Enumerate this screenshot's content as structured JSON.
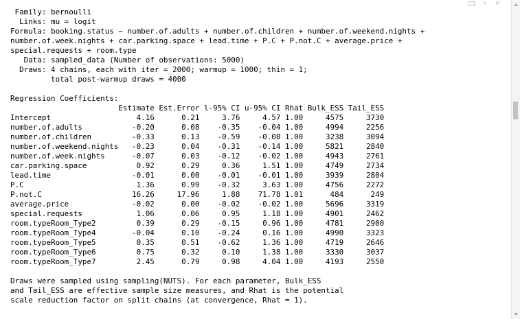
{
  "window_controls": {
    "minimize_icon": "minimize-icon",
    "maximize_icon": "maximize-icon",
    "close_icon": "close-icon",
    "collapse_glyph": "»",
    "close_glyph": "×"
  },
  "console_output": {
    "lines": [
      " Family: bernoulli",
      "  Links: mu = logit",
      "Formula: booking.status ~ number.of.adults + number.of.children + number.of.weekend.nights +",
      "number.of.week.nights + car.parking.space + lead.time + P.C + P.not.C + average.price +",
      "special.requests + room.type",
      "   Data: sampled_data (Number of observations: 5000)",
      "  Draws: 4 chains, each with iter = 2000; warmup = 1000; thin = 1;",
      "         total post-warmup draws = 4000",
      "",
      "Regression Coefficients:",
      "                        Estimate Est.Error l-95% CI u-95% CI Rhat Bulk_ESS Tail_ESS",
      "Intercept                   4.16      0.21     3.76     4.57 1.00     4575     3730",
      "number.of.adults           -0.20      0.08    -0.35    -0.04 1.00     4994     2256",
      "number.of.children         -0.33      0.13    -0.59    -0.08 1.00     3238     3094",
      "number.of.weekend.nights   -0.23      0.04    -0.31    -0.14 1.00     5821     2840",
      "number.of.week.nights      -0.07      0.03    -0.12    -0.02 1.00     4943     2761",
      "car.parking.space           0.92      0.29     0.36     1.51 1.00     4749     2734",
      "lead.time                  -0.01      0.00    -0.01    -0.01 1.00     3939     2804",
      "P.C                         1.36      0.99    -0.32     3.63 1.00     4756     2272",
      "P.not.C                    16.26     17.96     1.88    71.78 1.01      484      249",
      "average.price              -0.02      0.00    -0.02    -0.02 1.00     5696     3319",
      "special.requests            1.06      0.06     0.95     1.18 1.00     4901     2462",
      "room.typeRoom_Type2         0.39      0.29    -0.15     0.96 1.00     4781     2900",
      "room.typeRoom_Type4        -0.04      0.10    -0.24     0.16 1.00     4990     3323",
      "room.typeRoom_Type5         0.35      0.51    -0.62     1.36 1.00     4719     2646",
      "room.typeRoom_Type6         0.75      0.32     0.10     1.38 1.00     3330     3037",
      "room.typeRoom_Type7         2.45      0.79     0.98     4.04 1.00     4193     2550",
      "",
      "Draws were sampled using sampling(NUTS). For each parameter, Bulk_ESS",
      "and Tail_ESS are effective sample size measures, and Rhat is the potential",
      "scale reduction factor on split chains (at convergence, Rhat = 1)."
    ]
  }
}
